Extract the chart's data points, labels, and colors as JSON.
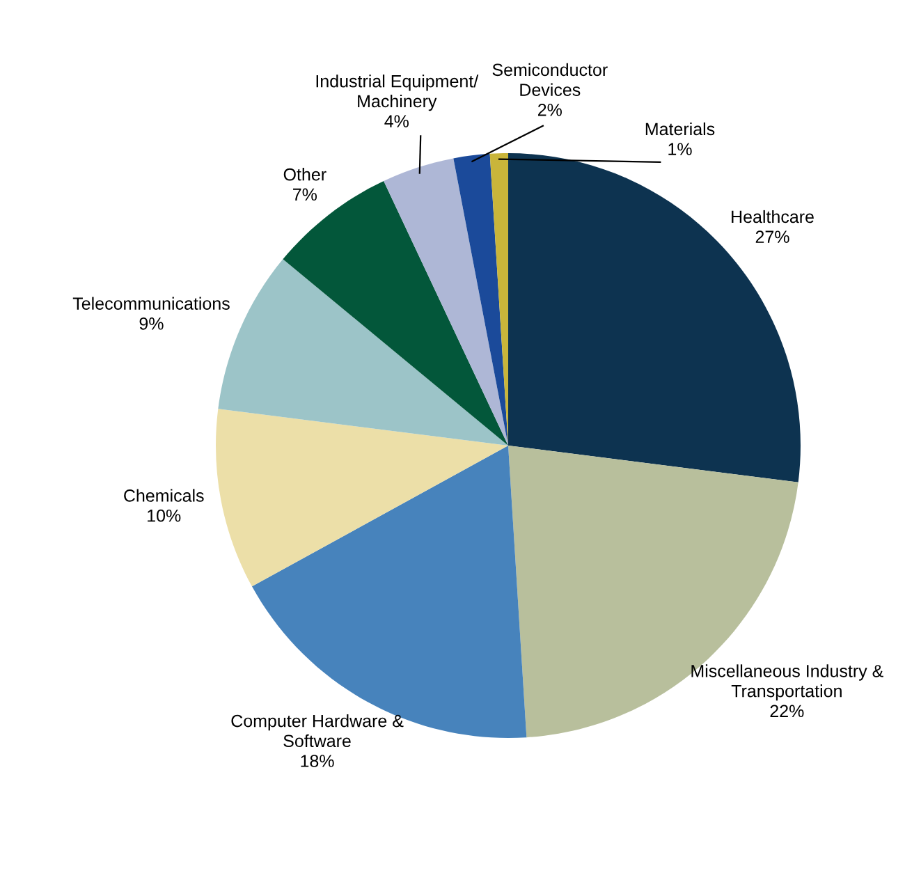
{
  "chart_data": {
    "type": "pie",
    "categories": [
      "Healthcare",
      "Miscellaneous Industry &\nTransportation",
      "Computer Hardware &\nSoftware",
      "Chemicals",
      "Telecommunications",
      "Other",
      "Industrial Equipment/\nMachinery",
      "Semiconductor\nDevices",
      "Materials"
    ],
    "values": [
      27,
      22,
      18,
      10,
      9,
      7,
      4,
      2,
      1
    ],
    "colors": [
      "#0d3350",
      "#b8bf9c",
      "#4783bc",
      "#ecdfa8",
      "#9cc4c8",
      "#03573a",
      "#aeb7d6",
      "#1b4a9a",
      "#c9b53a"
    ],
    "value_labels": [
      "27%",
      "22%",
      "18%",
      "10%",
      "9%",
      "7%",
      "4%",
      "2%",
      "1%"
    ]
  }
}
